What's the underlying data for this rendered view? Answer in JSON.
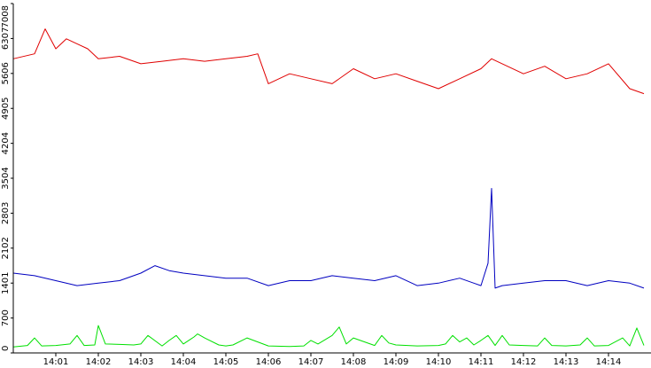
{
  "chart_data": {
    "type": "line",
    "ylim": [
      0,
      7008
    ],
    "yticks": [
      0,
      700,
      1401,
      2102,
      2803,
      3504,
      4204,
      4905,
      5606,
      6307,
      7008
    ],
    "ytick_labels": [
      "0",
      "700",
      "1401",
      "2102",
      "2803",
      "3504",
      "4204",
      "4905",
      "5606",
      "6307",
      "7008"
    ],
    "xlim": [
      "14:00",
      "14:15"
    ],
    "xticks": [
      "14:01",
      "14:02",
      "14:03",
      "14:04",
      "14:05",
      "14:06",
      "14:07",
      "14:08",
      "14:09",
      "14:10",
      "14:11",
      "14:12",
      "14:13",
      "14:14"
    ],
    "grid": false,
    "legend": "none",
    "series": [
      {
        "color": "#e00000",
        "x": [
          "14:00:00",
          "14:00:30",
          "14:00:45",
          "14:01:00",
          "14:01:15",
          "14:01:30",
          "14:01:45",
          "14:02:00",
          "14:02:30",
          "14:03:00",
          "14:03:30",
          "14:04:00",
          "14:04:30",
          "14:05:00",
          "14:05:30",
          "14:05:45",
          "14:06:00",
          "14:06:30",
          "14:07:00",
          "14:07:30",
          "14:08:00",
          "14:08:30",
          "14:09:00",
          "14:09:30",
          "14:10:00",
          "14:10:30",
          "14:11:00",
          "14:11:15",
          "14:11:30",
          "14:12:00",
          "14:12:30",
          "14:13:00",
          "14:13:30",
          "14:14:00",
          "14:14:30",
          "14:14:50"
        ],
        "values": [
          5900,
          6000,
          6500,
          6100,
          6300,
          6200,
          6100,
          5900,
          5950,
          5800,
          5850,
          5900,
          5850,
          5900,
          5950,
          6000,
          5400,
          5600,
          5500,
          5400,
          5700,
          5500,
          5600,
          5450,
          5300,
          5500,
          5700,
          5900,
          5800,
          5600,
          5750,
          5500,
          5600,
          5800,
          5300,
          5200
        ]
      },
      {
        "color": "#0000c0",
        "x": [
          "14:00:00",
          "14:00:30",
          "14:01:00",
          "14:01:30",
          "14:02:00",
          "14:02:30",
          "14:03:00",
          "14:03:20",
          "14:03:40",
          "14:04:00",
          "14:04:30",
          "14:05:00",
          "14:05:30",
          "14:06:00",
          "14:06:30",
          "14:07:00",
          "14:07:30",
          "14:08:00",
          "14:08:30",
          "14:09:00",
          "14:09:30",
          "14:10:00",
          "14:10:30",
          "14:10:50",
          "14:11:00",
          "14:11:10",
          "14:11:15",
          "14:11:20",
          "14:11:30",
          "14:12:00",
          "14:12:30",
          "14:13:00",
          "14:13:30",
          "14:14:00",
          "14:14:30",
          "14:14:50"
        ],
        "values": [
          1600,
          1550,
          1450,
          1350,
          1400,
          1450,
          1600,
          1750,
          1650,
          1600,
          1550,
          1500,
          1500,
          1350,
          1450,
          1450,
          1550,
          1500,
          1450,
          1550,
          1350,
          1400,
          1500,
          1400,
          1350,
          1800,
          3300,
          1300,
          1350,
          1400,
          1450,
          1450,
          1350,
          1450,
          1400,
          1300
        ]
      },
      {
        "color": "#00e000",
        "x": [
          "14:00:00",
          "14:00:20",
          "14:00:30",
          "14:00:40",
          "14:01:00",
          "14:01:20",
          "14:01:30",
          "14:01:40",
          "14:01:55",
          "14:02:00",
          "14:02:10",
          "14:02:30",
          "14:02:50",
          "14:03:00",
          "14:03:10",
          "14:03:30",
          "14:03:40",
          "14:03:50",
          "14:04:00",
          "14:04:15",
          "14:04:20",
          "14:04:30",
          "14:04:50",
          "14:05:00",
          "14:05:10",
          "14:05:30",
          "14:06:00",
          "14:06:30",
          "14:06:50",
          "14:07:00",
          "14:07:10",
          "14:07:30",
          "14:07:40",
          "14:07:50",
          "14:08:00",
          "14:08:30",
          "14:08:40",
          "14:08:50",
          "14:09:00",
          "14:09:30",
          "14:10:00",
          "14:10:10",
          "14:10:20",
          "14:10:30",
          "14:10:40",
          "14:10:50",
          "14:11:00",
          "14:11:10",
          "14:11:20",
          "14:11:30",
          "14:11:40",
          "14:12:00",
          "14:12:20",
          "14:12:30",
          "14:12:40",
          "14:13:00",
          "14:13:20",
          "14:13:30",
          "14:13:40",
          "14:14:00",
          "14:14:20",
          "14:14:30",
          "14:14:40",
          "14:14:50"
        ],
        "values": [
          120,
          150,
          300,
          140,
          150,
          180,
          350,
          150,
          160,
          550,
          180,
          170,
          160,
          180,
          350,
          140,
          250,
          350,
          180,
          320,
          380,
          300,
          160,
          140,
          160,
          300,
          140,
          130,
          140,
          250,
          180,
          350,
          520,
          180,
          300,
          150,
          350,
          200,
          160,
          140,
          150,
          180,
          350,
          220,
          300,
          160,
          250,
          350,
          150,
          350,
          160,
          150,
          140,
          300,
          150,
          140,
          160,
          300,
          140,
          150,
          300,
          140,
          500,
          150
        ]
      }
    ]
  }
}
